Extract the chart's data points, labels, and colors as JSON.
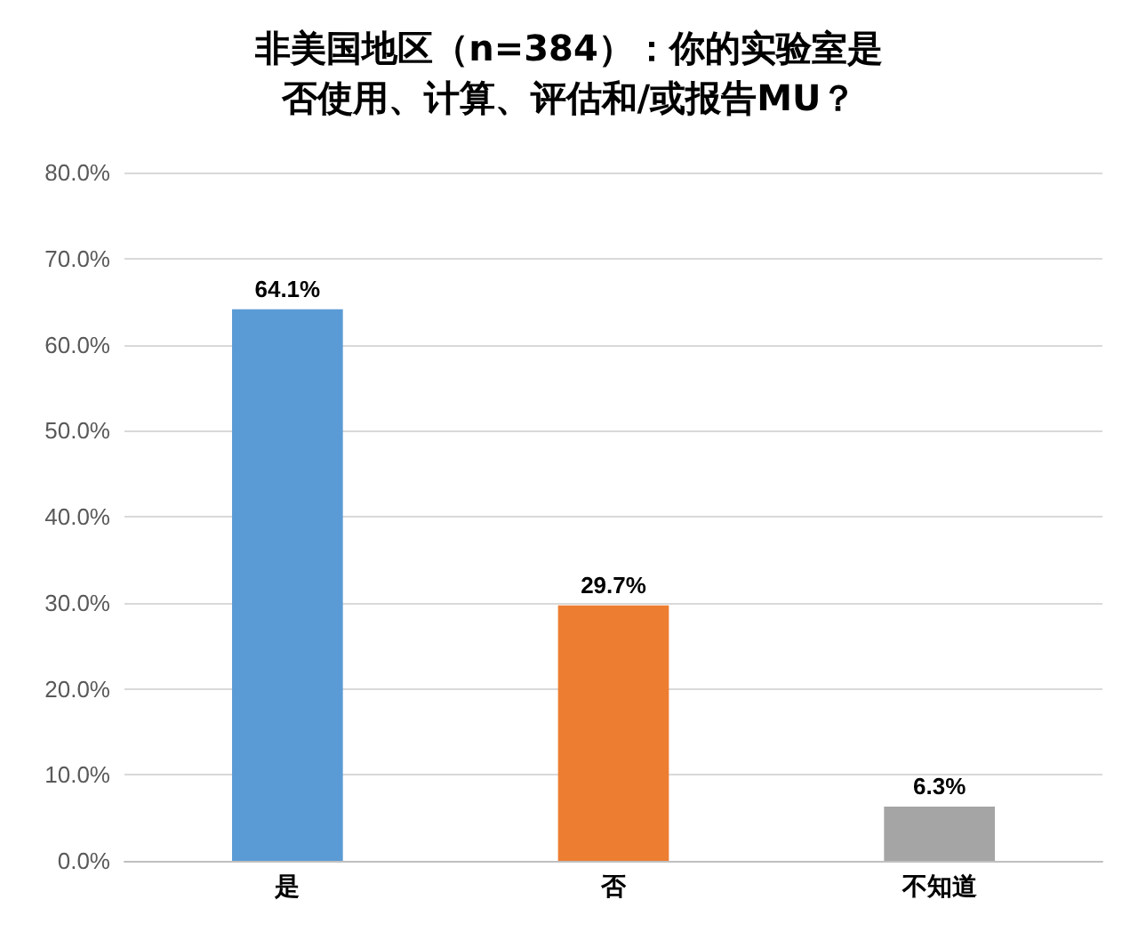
{
  "chart_data": {
    "type": "bar",
    "title": "非美国地区（n=384）：你的实验室是否使用、计算、评估和/或报告MU？",
    "categories": [
      "是",
      "否",
      "不知道"
    ],
    "values": [
      64.1,
      29.7,
      6.3
    ],
    "colors": [
      "#5b9bd5",
      "#ed7d31",
      "#a5a5a5"
    ],
    "value_labels": [
      "64.1%",
      "29.7%",
      "6.3%"
    ],
    "ylim": [
      0,
      80
    ],
    "yticks": [
      {
        "value": 0,
        "label": "0.0%"
      },
      {
        "value": 10,
        "label": "10.0%"
      },
      {
        "value": 20,
        "label": "20.0%"
      },
      {
        "value": 30,
        "label": "30.0%"
      },
      {
        "value": 40,
        "label": "40.0%"
      },
      {
        "value": 50,
        "label": "50.0%"
      },
      {
        "value": 60,
        "label": "60.0%"
      },
      {
        "value": 70,
        "label": "70.0%"
      },
      {
        "value": 80,
        "label": "80.0%"
      }
    ],
    "grid": true
  }
}
